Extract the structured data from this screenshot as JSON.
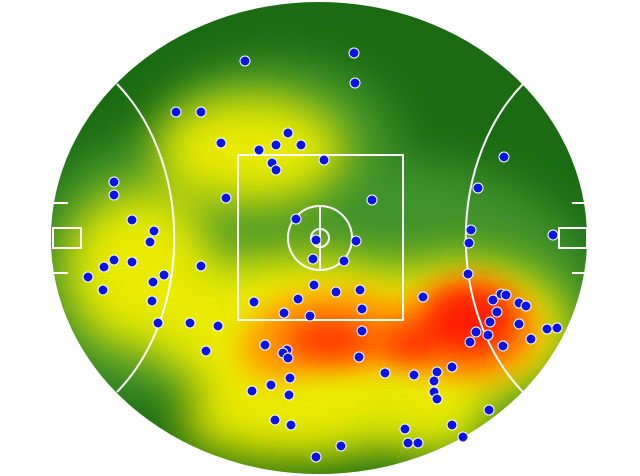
{
  "colors": {
    "background": "#ffffff",
    "grass_dark": "#1a6b12",
    "grass_mid": "#3a8f2a",
    "heat_yellow": "#f5f000",
    "heat_orange": "#ff8c00",
    "heat_red": "#ff1a00",
    "line": "#ffffff",
    "dot_fill": "#0a14e6",
    "dot_stroke": "#ffffff"
  },
  "icons": {
    "field": "football-oval-icon",
    "point": "circle-dot-icon"
  }
}
